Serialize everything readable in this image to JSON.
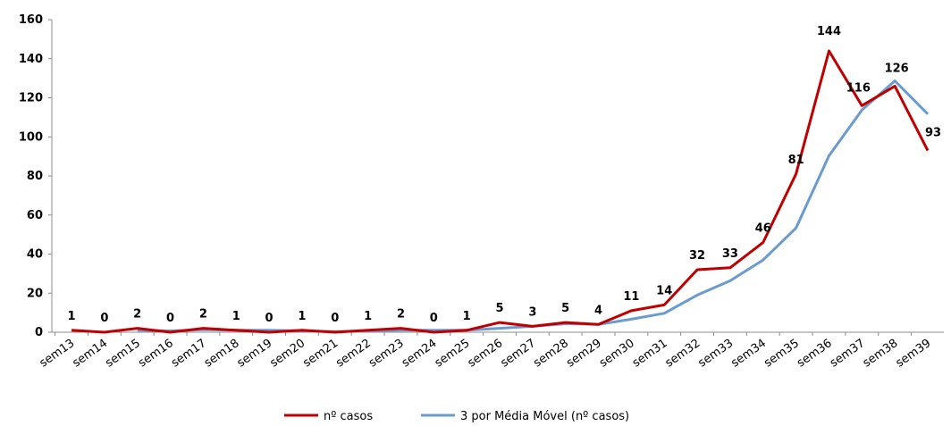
{
  "chart_data": {
    "type": "line",
    "categories": [
      "sem13",
      "sem14",
      "sem15",
      "sem16",
      "sem17",
      "sem18",
      "sem19",
      "sem20",
      "sem21",
      "sem22",
      "sem23",
      "sem24",
      "sem25",
      "sem26",
      "sem27",
      "sem28",
      "sem29",
      "sem30",
      "sem31",
      "sem32",
      "sem33",
      "sem34",
      "sem35",
      "sem36",
      "sem37",
      "sem38",
      "sem39"
    ],
    "series": [
      {
        "name": "nº casos",
        "color": "#C00000",
        "values": [
          1,
          0,
          2,
          0,
          2,
          1,
          0,
          1,
          0,
          1,
          2,
          0,
          1,
          5,
          3,
          5,
          4,
          11,
          14,
          32,
          33,
          46,
          81,
          144,
          116,
          126,
          93
        ],
        "labels": [
          "1",
          "0",
          "2",
          "0",
          "2",
          "1",
          "0",
          "1",
          "0",
          "1",
          "2",
          "0",
          "1",
          "5",
          "3",
          "5",
          "4",
          "11",
          "14",
          "32",
          "33",
          "46",
          "81",
          "144",
          "116",
          "126",
          "93"
        ]
      },
      {
        "name": "3 por Média Móvel (nº casos)",
        "color": "#6A9BD1",
        "values": [
          null,
          null,
          1,
          0.67,
          1.33,
          1,
          1,
          0.67,
          0.33,
          0.67,
          1,
          1,
          1,
          2,
          3,
          4.33,
          4,
          6.67,
          9.67,
          19,
          26.33,
          37,
          53.33,
          90.33,
          113.67,
          128.67,
          111.67
        ]
      }
    ],
    "ylim": [
      0,
      160
    ],
    "yticks": [
      "0",
      "20",
      "40",
      "60",
      "80",
      "100",
      "120",
      "140",
      "160"
    ],
    "grid": false,
    "legend": "bottom"
  }
}
